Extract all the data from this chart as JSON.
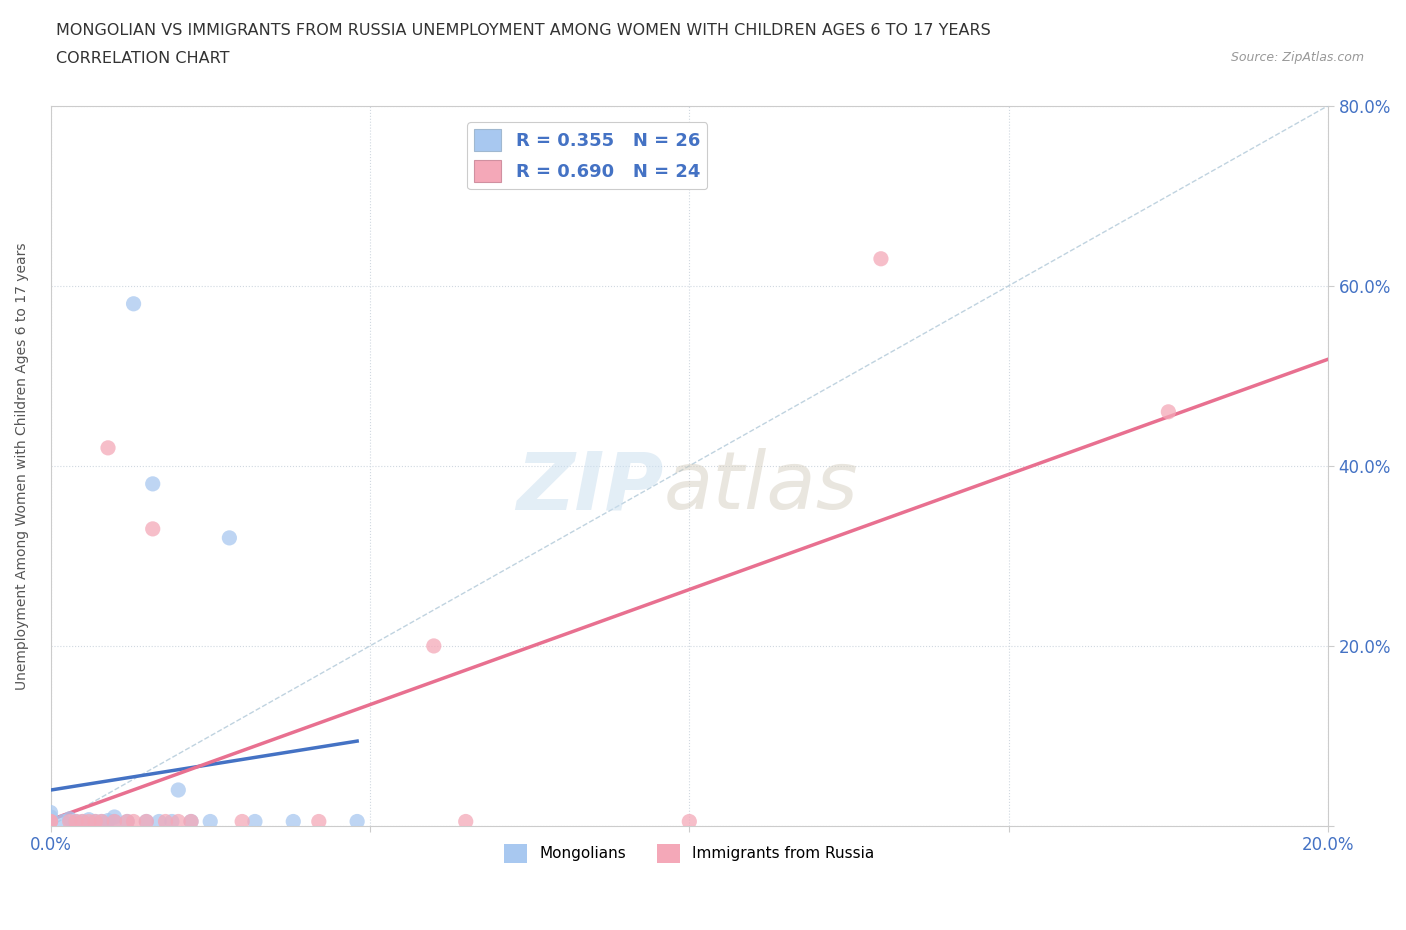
{
  "title_line1": "MONGOLIAN VS IMMIGRANTS FROM RUSSIA UNEMPLOYMENT AMONG WOMEN WITH CHILDREN AGES 6 TO 17 YEARS",
  "title_line2": "CORRELATION CHART",
  "source": "Source: ZipAtlas.com",
  "ylabel_label": "Unemployment Among Women with Children Ages 6 to 17 years",
  "legend_mongolians": "Mongolians",
  "legend_russia": "Immigrants from Russia",
  "mongolian_color": "#a8c8f0",
  "russia_color": "#f4a8b8",
  "trend_line_color_mongolian": "#4472c4",
  "trend_line_color_russia": "#e87090",
  "diagonal_color": "#b0c8d8",
  "R_mongolian": 0.355,
  "N_mongolian": 26,
  "R_russia": 0.69,
  "N_russia": 24,
  "mongolian_x": [
    0.0,
    0.0,
    0.0,
    0.002,
    0.003,
    0.004,
    0.005,
    0.006,
    0.007,
    0.008,
    0.009,
    0.01,
    0.01,
    0.012,
    0.013,
    0.015,
    0.016,
    0.017,
    0.019,
    0.02,
    0.022,
    0.025,
    0.028,
    0.032,
    0.038,
    0.048
  ],
  "mongolian_y": [
    0.005,
    0.01,
    0.015,
    0.005,
    0.008,
    0.005,
    0.005,
    0.007,
    0.005,
    0.005,
    0.006,
    0.005,
    0.01,
    0.005,
    0.58,
    0.005,
    0.38,
    0.005,
    0.005,
    0.04,
    0.005,
    0.005,
    0.32,
    0.005,
    0.005,
    0.005
  ],
  "russia_x": [
    0.0,
    0.0,
    0.003,
    0.004,
    0.005,
    0.006,
    0.007,
    0.008,
    0.009,
    0.01,
    0.012,
    0.013,
    0.015,
    0.016,
    0.018,
    0.02,
    0.022,
    0.03,
    0.042,
    0.06,
    0.065,
    0.1,
    0.13,
    0.175
  ],
  "russia_y": [
    0.005,
    0.005,
    0.005,
    0.005,
    0.005,
    0.005,
    0.005,
    0.005,
    0.42,
    0.005,
    0.005,
    0.005,
    0.005,
    0.33,
    0.005,
    0.005,
    0.005,
    0.005,
    0.005,
    0.2,
    0.005,
    0.005,
    0.63,
    0.46
  ],
  "xlim": [
    0.0,
    0.2
  ],
  "ylim": [
    0.0,
    0.8
  ],
  "x_ticks": [
    0.0,
    0.05,
    0.1,
    0.15,
    0.2
  ],
  "x_tick_labels": [
    "0.0%",
    "",
    "",
    "",
    "20.0%"
  ],
  "y_ticks": [
    0.0,
    0.2,
    0.4,
    0.6,
    0.8
  ],
  "y_tick_labels": [
    "",
    "20.0%",
    "40.0%",
    "60.0%",
    "80.0%"
  ]
}
